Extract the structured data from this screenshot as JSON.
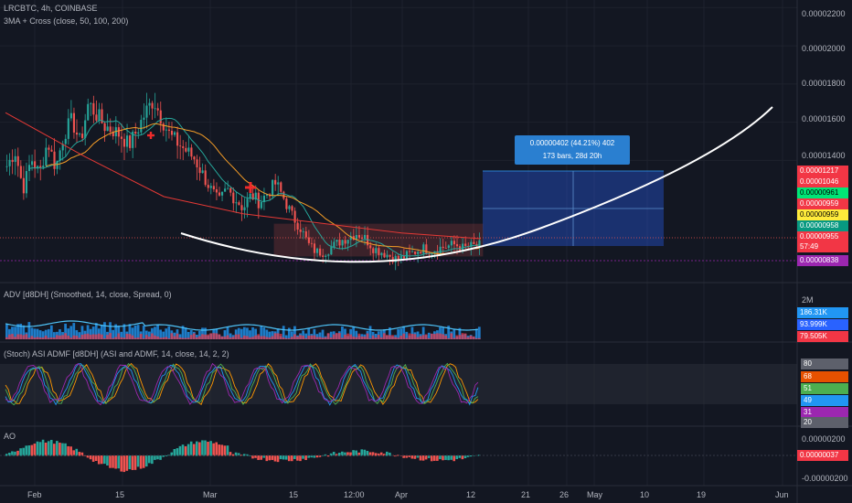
{
  "header": {
    "symbol": "LRCBTC, 4h, COINBASE",
    "indicator_main": "3MA + Cross (close, 50, 100, 200)",
    "indicator_adv": "ADV [d8DH] (Smoothed, 14, close, Spread, 0)",
    "indicator_stoch": "(Stoch) ASI ADMF [d8DH] (ASI and ADMF, 14, close, 14, 2, 2)",
    "indicator_ao": "AO"
  },
  "measure": {
    "line1": "0.00000402 (44.21%) 402",
    "line2": "173 bars, 28d 20h"
  },
  "colors": {
    "background": "#131722",
    "up": "#26a69a",
    "down": "#ef5350",
    "ma50": "#26a69a",
    "ma100": "#f59d27",
    "ma200": "#e53935",
    "curve": "#ffffff",
    "measure_box": "#2962ff",
    "range_box": "#ef5350"
  },
  "axis_main": [
    "0.00002200",
    "0.00002000",
    "0.00001800",
    "0.00001600",
    "0.00001400"
  ],
  "price_tags": [
    {
      "label": "0.00001217",
      "bg": "#f23645",
      "fg": "#ffffff"
    },
    {
      "label": "0.00001046",
      "bg": "#f23645",
      "fg": "#ffffff"
    },
    {
      "label": "0.00000961",
      "bg": "#00e676",
      "fg": "#000000"
    },
    {
      "label": "0.00000959",
      "bg": "#f23645",
      "fg": "#ffffff"
    },
    {
      "label": "0.00000959",
      "bg": "#ffeb3b",
      "fg": "#000000"
    },
    {
      "label": "0.00000958",
      "bg": "#089981",
      "fg": "#ffffff"
    },
    {
      "label": "0.00000955",
      "bg": "#f23645",
      "fg": "#ffffff"
    },
    {
      "label": "57:49",
      "bg": "#f23645",
      "fg": "#ffffff"
    },
    {
      "label": "0.00000838",
      "bg": "#9c27b0",
      "fg": "#ffffff"
    }
  ],
  "axis_adv": {
    "top": "2M",
    "tags": [
      {
        "label": "186.31K",
        "bg": "#2196f3",
        "fg": "#ffffff"
      },
      {
        "label": "93.999K",
        "bg": "#2962ff",
        "fg": "#ffffff"
      },
      {
        "label": "79.505K",
        "bg": "#f23645",
        "fg": "#ffffff"
      }
    ]
  },
  "axis_stoch": [
    {
      "label": "80",
      "bg": "#5d606b",
      "fg": "#ffffff"
    },
    {
      "label": "68",
      "bg": "#e65100",
      "fg": "#ffffff"
    },
    {
      "label": "51",
      "bg": "#4caf50",
      "fg": "#ffffff"
    },
    {
      "label": "49",
      "bg": "#2196f3",
      "fg": "#ffffff"
    },
    {
      "label": "31",
      "bg": "#9c27b0",
      "fg": "#ffffff"
    },
    {
      "label": "20",
      "bg": "#5d606b",
      "fg": "#ffffff"
    }
  ],
  "axis_ao": {
    "top": "0.00000200",
    "tag": "0.00000037",
    "bottom": "-0.00000200"
  },
  "time_labels": [
    "Feb",
    "15",
    "Mar",
    "15",
    "12:00",
    "Apr",
    "12",
    "21",
    "26",
    "May",
    "10",
    "19",
    "Jun"
  ],
  "chart_data": {
    "type": "candlestick",
    "title": "LRCBTC, 4h, COINBASE",
    "ylim": [
      7.6e-06,
      2.24e-05
    ],
    "y_ticks": [
      1.4e-05,
      1.6e-05,
      1.8e-05,
      2e-05,
      2.2e-05
    ],
    "x_labels": [
      "Feb",
      "15",
      "Mar",
      "15",
      "12:00",
      "Apr",
      "12",
      "21",
      "26",
      "May",
      "10",
      "19",
      "Jun"
    ],
    "close_path": [
      [
        1.37e-05,
        1.45e-05,
        1.25e-05,
        1.41e-05,
        1.33e-05,
        1.5e-05,
        1.36e-05,
        1.54e-05,
        1.61e-05,
        1.49e-05,
        1.7e-05,
        1.64e-05,
        1.58e-05,
        1.56e-05,
        1.53e-05,
        1.48e-05,
        1.56e-05,
        1.65e-05,
        1.72e-05,
        1.62e-05,
        1.53e-05,
        1.49e-05,
        1.45e-05,
        1.41e-05,
        1.33e-05,
        1.25e-05,
        1.18e-05,
        1.25e-05,
        1.2e-05,
        1.15e-05,
        1.22e-05,
        1.18e-05,
        1.23e-05,
        1.28e-05,
        1.2e-05,
        1.11e-05,
        1.05e-05,
        9.6e-06,
        9.2e-06,
        9.2e-06,
        9.5e-06,
        9.8e-06,
        1e-05,
        1.02e-05,
        9.9e-06,
        9.4e-06,
        9.2e-06,
        9e-06,
        8.8e-06,
        9e-06,
        9.2e-06,
        9.4e-06,
        9.3e-06,
        9.4e-06,
        9.5e-06,
        9.6e-06,
        9.4e-06,
        9.5e-06,
        9.55e-06
      ]
    ],
    "ma200_path": [
      1.65e-05,
      1.42e-05,
      1.21e-05,
      1.12e-05,
      1.07e-05,
      1.02e-05,
      9.9e-06
    ],
    "cross_markers": [
      "ma-cross-1",
      "ma-cross-2"
    ],
    "measure": {
      "change": "0.00000402 (44.21%) 402",
      "span": "173 bars, 28d 20h"
    }
  }
}
